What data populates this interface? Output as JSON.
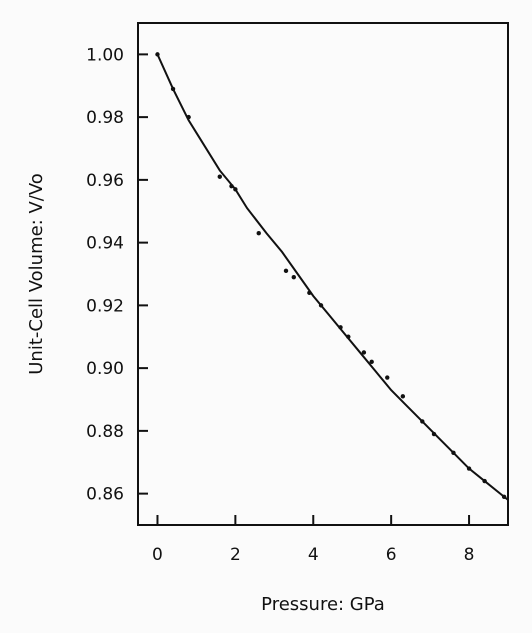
{
  "chart_data": {
    "type": "line",
    "title": "",
    "xlabel": "Pressure: GPa",
    "ylabel": "Unit-Cell Volume: V/Vo",
    "xlim": [
      -0.5,
      9.0
    ],
    "ylim": [
      0.85,
      1.01
    ],
    "x_ticks": [
      0,
      2,
      4,
      6,
      8
    ],
    "x_tick_labels": [
      "0",
      "2",
      "4",
      "6",
      "8"
    ],
    "y_ticks": [
      0.86,
      0.88,
      0.9,
      0.92,
      0.94,
      0.96,
      0.98,
      1.0
    ],
    "y_tick_labels": [
      "0.86",
      "0.88",
      "0.90",
      "0.92",
      "0.94",
      "0.96",
      "0.98",
      "1.00"
    ],
    "grid": false,
    "legend": "none",
    "series": [
      {
        "x": [
          0.0,
          0.4,
          0.8,
          1.0,
          1.6,
          2.0,
          2.3,
          2.8,
          3.2,
          3.6,
          4.0,
          4.4,
          4.8,
          5.2,
          5.6,
          6.0,
          6.4,
          6.8,
          7.2,
          7.6,
          8.0,
          8.4,
          8.8,
          9.0
        ],
        "y": [
          1.0,
          0.989,
          0.979,
          0.975,
          0.963,
          0.957,
          0.951,
          0.943,
          0.937,
          0.93,
          0.923,
          0.917,
          0.911,
          0.905,
          0.899,
          0.893,
          0.888,
          0.883,
          0.878,
          0.873,
          0.868,
          0.864,
          0.86,
          0.858
        ]
      }
    ],
    "points": {
      "x": [
        0.0,
        0.4,
        0.8,
        1.6,
        1.9,
        2.0,
        2.6,
        3.3,
        3.5,
        3.9,
        4.2,
        4.7,
        4.9,
        5.3,
        5.5,
        5.9,
        6.3,
        6.8,
        7.1,
        7.6,
        8.0,
        8.4,
        8.9
      ],
      "y": [
        1.0,
        0.989,
        0.98,
        0.961,
        0.958,
        0.957,
        0.943,
        0.931,
        0.929,
        0.924,
        0.92,
        0.913,
        0.91,
        0.905,
        0.902,
        0.897,
        0.891,
        0.883,
        0.879,
        0.873,
        0.868,
        0.864,
        0.859
      ]
    }
  }
}
